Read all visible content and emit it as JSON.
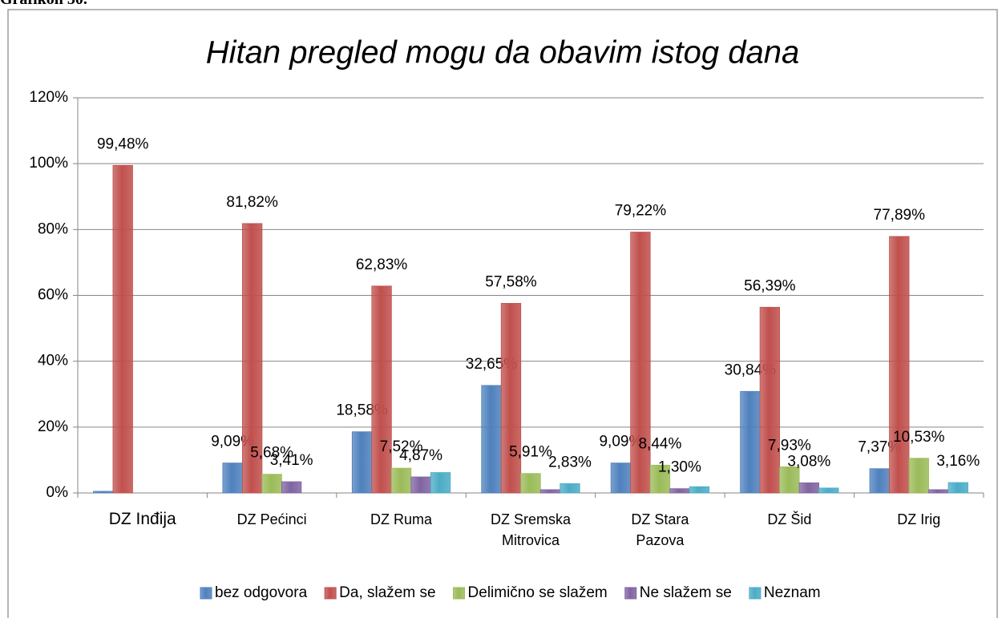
{
  "header": "Grafikon 30.",
  "chart_data": {
    "type": "bar",
    "title": "Hitan pregled mogu da obavim istog dana",
    "categories": [
      "DZ Inđija",
      "DZ Pećinci",
      "DZ Ruma",
      "DZ Sremska Mitrovica",
      "DZ Stara Pazova",
      "DZ Šid",
      "DZ Irig"
    ],
    "series": [
      {
        "name": "bez odgovora",
        "color": "#4f81bd",
        "values": [
          0.5,
          9.09,
          18.58,
          32.65,
          9.09,
          30.84,
          7.37
        ],
        "value_labels": [
          null,
          "9,09%",
          "18,58%",
          "32,65%",
          "9,09%",
          "30,84%",
          "7,37%"
        ]
      },
      {
        "name": "Da, slažem se",
        "color": "#c0504d",
        "values": [
          99.48,
          81.82,
          62.83,
          57.58,
          79.22,
          56.39,
          77.89
        ],
        "value_labels": [
          "99,48%",
          "81,82%",
          "62,83%",
          "57,58%",
          "79,22%",
          "56,39%",
          "77,89%"
        ]
      },
      {
        "name": "Delimično se slažem",
        "color": "#9bbb59",
        "values": [
          0,
          5.68,
          7.52,
          5.91,
          8.44,
          7.93,
          10.53
        ],
        "value_labels": [
          null,
          "5,68%",
          "7,52%",
          "5,91%",
          "8,44%",
          "7,93%",
          "10,53%"
        ]
      },
      {
        "name": "Ne slažem se",
        "color": "#8064a2",
        "values": [
          0,
          3.41,
          4.87,
          1.0,
          1.3,
          3.08,
          1.0
        ],
        "value_labels": [
          null,
          "3,41%",
          "4,87%",
          null,
          "1,30%",
          "3,08%",
          null
        ]
      },
      {
        "name": "Neznam",
        "color": "#4bacc6",
        "values": [
          0,
          0,
          6.2,
          2.83,
          1.9,
          1.5,
          3.16
        ],
        "value_labels": [
          null,
          null,
          null,
          "2,83%",
          null,
          null,
          "3,16%"
        ]
      }
    ],
    "ylim": [
      0,
      120
    ],
    "yticks": [
      {
        "value": 0,
        "label": "0%"
      },
      {
        "value": 20,
        "label": "20%"
      },
      {
        "value": 40,
        "label": "40%"
      },
      {
        "value": 60,
        "label": "60%"
      },
      {
        "value": 80,
        "label": "80%"
      },
      {
        "value": 100,
        "label": "100%"
      },
      {
        "value": 120,
        "label": "120%"
      }
    ],
    "grid": true,
    "legend": "bottom"
  }
}
